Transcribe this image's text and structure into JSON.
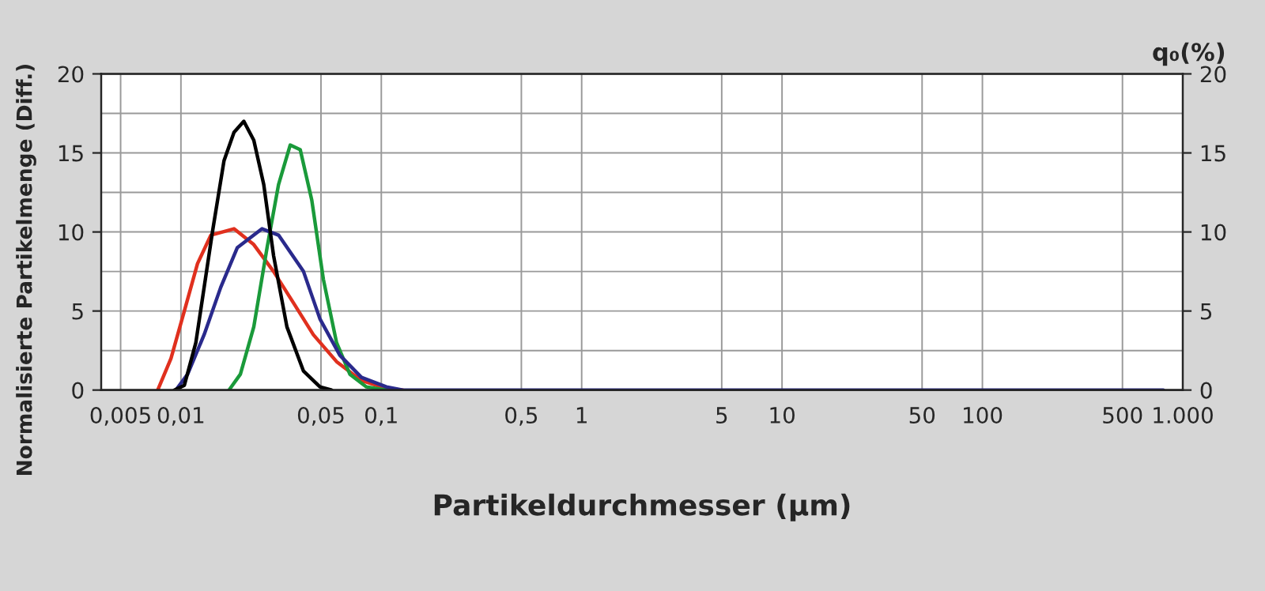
{
  "chart_data": {
    "type": "line",
    "xlabel": "Partikeldurchmesser (µm)",
    "ylabel": "Normalisierte Partikelmenge (Diff.)",
    "y2label": "q₀(%)",
    "log": "x",
    "grid": true,
    "legend": false,
    "xlim": [
      0.004,
      1000
    ],
    "xticks": [
      {
        "value": 0.005,
        "label": "0,005"
      },
      {
        "value": 0.01,
        "label": "0,01"
      },
      {
        "value": 0.05,
        "label": "0,05"
      },
      {
        "value": 0.1,
        "label": "0,1"
      },
      {
        "value": 0.5,
        "label": "0,5"
      },
      1,
      5,
      10,
      50,
      100,
      500,
      {
        "value": 1000,
        "label": "1.000"
      }
    ],
    "ylim": [
      0,
      20
    ],
    "yticks": [
      0,
      5,
      10,
      15,
      20
    ],
    "y2lim": [
      0,
      20
    ],
    "y2ticks": [
      0,
      5,
      10,
      15,
      20
    ],
    "series": [
      {
        "color": "#e0301e",
        "x": [
          0.00766,
          0.00892,
          0.0104,
          0.0121,
          0.0141,
          0.0184,
          0.0231,
          0.029,
          0.0365,
          0.0458,
          0.0598,
          0.0796,
          0.106,
          0.128
        ],
        "values": [
          0,
          2,
          5,
          8,
          9.8,
          10.2,
          9.2,
          7.5,
          5.5,
          3.5,
          1.8,
          0.6,
          0.1,
          0
        ]
      },
      {
        "color": "#1a9a3a",
        "x": [
          0.01737,
          0.0198,
          0.0231,
          0.0269,
          0.0307,
          0.0351,
          0.0394,
          0.045,
          0.0514,
          0.0598,
          0.0697,
          0.0843,
          0.106
        ],
        "values": [
          0,
          1,
          4,
          9,
          13,
          15.5,
          15.2,
          12,
          7,
          3,
          1,
          0.2,
          0
        ]
      },
      {
        "color": "#2a2a8c",
        "x": [
          0.00944,
          0.0108,
          0.01305,
          0.0158,
          0.0191,
          0.0254,
          0.0307,
          0.0409,
          0.0494,
          0.0621,
          0.0796,
          0.106,
          0.128,
          800
        ],
        "values": [
          0,
          1,
          3.5,
          6.5,
          9,
          10.2,
          9.8,
          7.5,
          4.5,
          2.2,
          0.8,
          0.2,
          0,
          0
        ]
      },
      {
        "color": "#000000",
        "x": [
          0.00927,
          0.0104,
          0.01187,
          0.01436,
          0.0164,
          0.0184,
          0.0206,
          0.0231,
          0.0259,
          0.029,
          0.0338,
          0.0409,
          0.0494,
          0.0565
        ],
        "values": [
          0,
          0.3,
          3,
          10,
          14.5,
          16.3,
          17,
          15.8,
          13,
          8.5,
          4,
          1.2,
          0.2,
          0
        ]
      }
    ]
  }
}
